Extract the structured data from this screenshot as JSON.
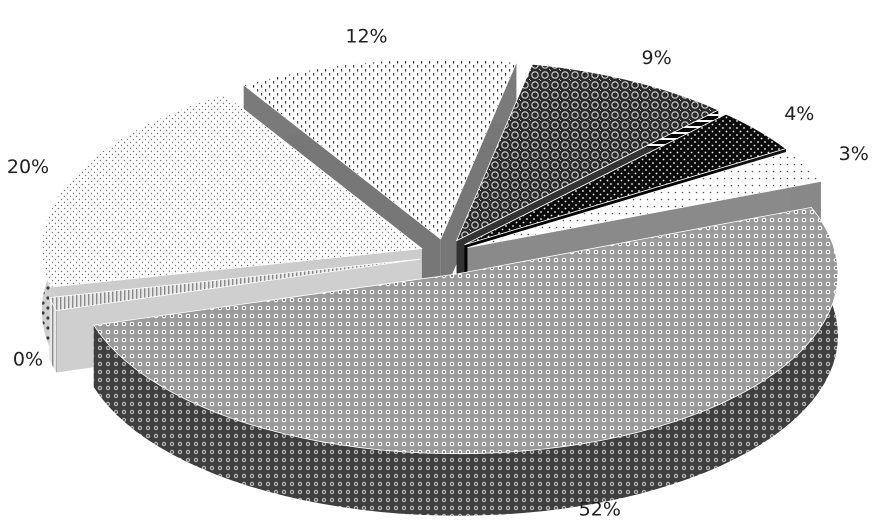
{
  "chart_data": {
    "type": "pie",
    "style": "3d-exploded",
    "legend": "none",
    "slices": [
      {
        "value": 52,
        "label": "52%",
        "pattern": "dotted-grid-dark-gray"
      },
      {
        "value": 0,
        "label": "0%",
        "pattern": "vertical-stripes-light-gray"
      },
      {
        "value": 20,
        "label": "20%",
        "pattern": "fine-dots-white"
      },
      {
        "value": 12,
        "label": "12%",
        "pattern": "dashed-dots-white"
      },
      {
        "value": 9,
        "label": "9%",
        "pattern": "hexagon-mesh-dark"
      },
      {
        "value": 4,
        "label": "4%",
        "pattern": "white-dots-on-black"
      },
      {
        "value": 3,
        "label": "3%",
        "pattern": "sparse-dots-white"
      }
    ]
  }
}
